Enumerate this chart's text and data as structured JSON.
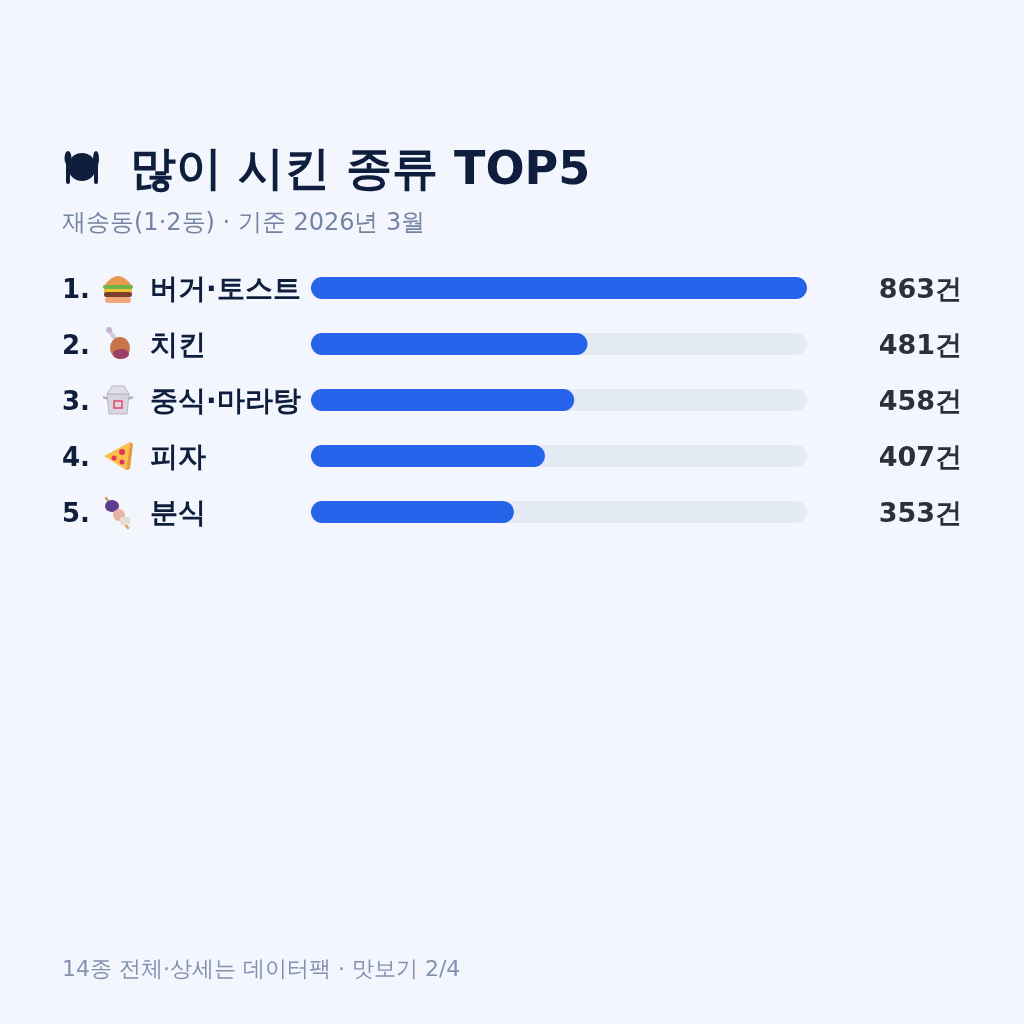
{
  "chart_data": {
    "type": "bar",
    "orientation": "horizontal",
    "title": "많이 시킨 종류 TOP5",
    "subtitle": "재송동(1·2동) · 기준 2026년 3월",
    "categories": [
      "1. 버거·토스트",
      "2. 치킨",
      "3. 중식·마라탕",
      "4. 피자",
      "5. 분식"
    ],
    "values": [
      863,
      481,
      458,
      407,
      353
    ],
    "value_labels": [
      "863건",
      "481건",
      "458건",
      "407건",
      "353건"
    ],
    "color": "#2563eb",
    "annotations": [
      "14종 전체·상세는 데이터팩 · 맛보기 2/4"
    ]
  }
}
